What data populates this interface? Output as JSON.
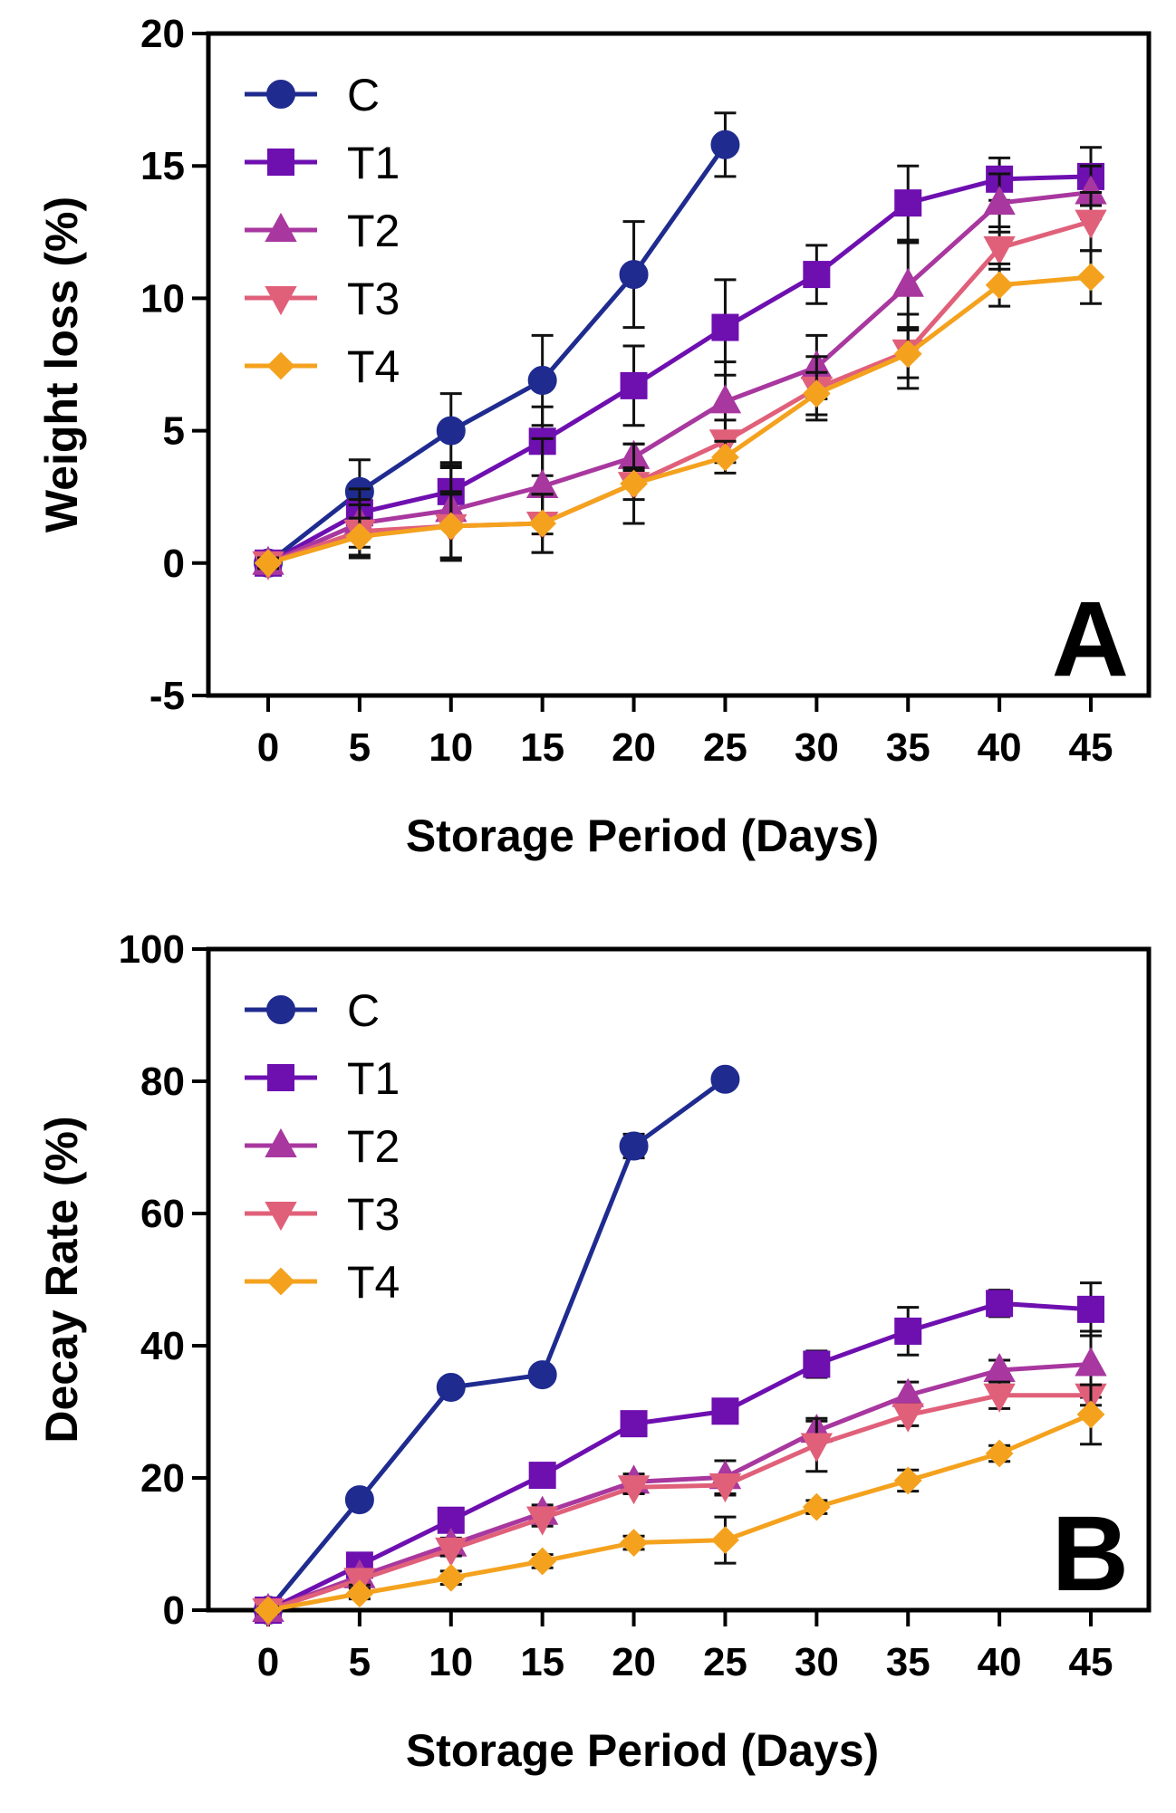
{
  "chart_data": [
    {
      "type": "line",
      "panel_label": "A",
      "xlabel": "Storage Period (Days)",
      "ylabel": "Weight loss (%)",
      "x": [
        0,
        5,
        10,
        15,
        20,
        25,
        30,
        35,
        40,
        45
      ],
      "xticks": [
        "0",
        "5",
        "10",
        "15",
        "20",
        "25",
        "30",
        "35",
        "40",
        "45"
      ],
      "ylim": [
        -5,
        20
      ],
      "yticks": [
        -5,
        0,
        5,
        10,
        15,
        20
      ],
      "ytick_labels": [
        "-5",
        "0",
        "5",
        "10",
        "15",
        "20"
      ],
      "legend_position": "top-left",
      "series": [
        {
          "name": "C",
          "color": "#1f2b8f",
          "marker": "circle",
          "x": [
            0,
            5,
            10,
            15,
            20,
            25
          ],
          "values": [
            0,
            2.7,
            5.0,
            6.9,
            10.9,
            15.8
          ],
          "errors": [
            0.2,
            1.2,
            1.4,
            1.7,
            2.0,
            1.2
          ]
        },
        {
          "name": "T1",
          "color": "#6e0fb0",
          "marker": "square",
          "x": [
            0,
            5,
            10,
            15,
            20,
            25,
            30,
            35,
            40,
            45
          ],
          "values": [
            0,
            1.9,
            2.7,
            4.6,
            6.7,
            8.9,
            10.9,
            13.6,
            14.5,
            14.6
          ],
          "errors": [
            0.2,
            0.9,
            1.0,
            1.3,
            1.5,
            1.8,
            1.1,
            1.4,
            0.8,
            1.1
          ]
        },
        {
          "name": "T2",
          "color": "#a8379f",
          "marker": "triangle-up",
          "x": [
            0,
            5,
            10,
            15,
            20,
            25,
            30,
            35,
            40,
            45
          ],
          "values": [
            0,
            1.5,
            2.0,
            2.9,
            4.0,
            6.1,
            7.4,
            10.5,
            13.6,
            14.0
          ],
          "errors": [
            0.2,
            0.9,
            1.8,
            1.8,
            0.5,
            1.5,
            1.2,
            1.6,
            1.1,
            1.0
          ]
        },
        {
          "name": "T3",
          "color": "#e0607a",
          "marker": "triangle-down",
          "x": [
            0,
            5,
            10,
            15,
            20,
            25,
            30,
            35,
            40,
            45
          ],
          "values": [
            0,
            1.2,
            1.4,
            1.5,
            3.0,
            4.6,
            6.6,
            8.0,
            11.9,
            12.9
          ],
          "errors": [
            0.2,
            1.0,
            1.3,
            1.1,
            1.5,
            0.8,
            1.2,
            1.4,
            0.8,
            1.1
          ]
        },
        {
          "name": "T4",
          "color": "#f4a21e",
          "marker": "diamond",
          "x": [
            0,
            5,
            10,
            15,
            20,
            25,
            30,
            35,
            40,
            45
          ],
          "values": [
            0,
            1.0,
            1.4,
            1.5,
            3.0,
            4.0,
            6.4,
            7.9,
            10.5,
            10.8
          ],
          "errors": [
            0.2,
            0.7,
            1.2,
            1.1,
            0.6,
            0.6,
            0.8,
            0.9,
            0.8,
            1.0
          ]
        }
      ]
    },
    {
      "type": "line",
      "panel_label": "B",
      "xlabel": "Storage Period (Days)",
      "ylabel": "Decay Rate (%)",
      "x": [
        0,
        5,
        10,
        15,
        20,
        25,
        30,
        35,
        40,
        45
      ],
      "xticks": [
        "0",
        "5",
        "10",
        "15",
        "20",
        "25",
        "30",
        "35",
        "40",
        "45"
      ],
      "ylim": [
        0,
        100
      ],
      "yticks": [
        0,
        20,
        40,
        60,
        80,
        100
      ],
      "ytick_labels": [
        "0",
        "20",
        "40",
        "60",
        "80",
        "100"
      ],
      "legend_position": "top-left",
      "series": [
        {
          "name": "C",
          "color": "#1f2b8f",
          "marker": "circle",
          "x": [
            0,
            5,
            10,
            15,
            20,
            25
          ],
          "values": [
            0,
            16.7,
            33.7,
            35.6,
            70.2,
            80.3
          ],
          "errors": [
            0.5,
            0.8,
            1.0,
            1.0,
            1.8,
            0.8
          ]
        },
        {
          "name": "T1",
          "color": "#6e0fb0",
          "marker": "square",
          "x": [
            0,
            5,
            10,
            15,
            20,
            25,
            30,
            35,
            40,
            45
          ],
          "values": [
            0,
            6.8,
            13.6,
            20.4,
            28.2,
            30.1,
            37.2,
            42.2,
            46.4,
            45.5
          ],
          "errors": [
            0.5,
            1.0,
            1.2,
            1.2,
            1.0,
            0.8,
            2.0,
            3.6,
            2.0,
            4.0
          ]
        },
        {
          "name": "T2",
          "color": "#a8379f",
          "marker": "triangle-up",
          "x": [
            0,
            5,
            10,
            15,
            20,
            25,
            30,
            35,
            40,
            45
          ],
          "values": [
            0,
            5.1,
            9.9,
            14.7,
            19.4,
            20.1,
            27.1,
            32.5,
            36.3,
            37.2
          ],
          "errors": [
            0.5,
            1.0,
            1.0,
            1.2,
            1.2,
            2.5,
            1.5,
            2.0,
            1.5,
            5.0
          ]
        },
        {
          "name": "T3",
          "color": "#e0607a",
          "marker": "triangle-down",
          "x": [
            0,
            5,
            10,
            15,
            20,
            25,
            30,
            35,
            40,
            45
          ],
          "values": [
            0,
            4.6,
            9.2,
            13.9,
            18.6,
            18.9,
            25.0,
            29.5,
            32.5,
            32.5
          ],
          "errors": [
            0.5,
            0.8,
            1.0,
            1.2,
            1.0,
            1.5,
            4.0,
            1.6,
            2.0,
            1.5
          ]
        },
        {
          "name": "T4",
          "color": "#f4a21e",
          "marker": "diamond",
          "x": [
            0,
            5,
            10,
            15,
            20,
            25,
            30,
            35,
            40,
            45
          ],
          "values": [
            0,
            2.5,
            4.9,
            7.4,
            10.2,
            10.6,
            15.6,
            19.6,
            23.7,
            29.6
          ],
          "errors": [
            0.5,
            0.8,
            1.0,
            1.0,
            1.0,
            3.5,
            1.0,
            1.6,
            1.2,
            4.5
          ]
        }
      ]
    }
  ]
}
